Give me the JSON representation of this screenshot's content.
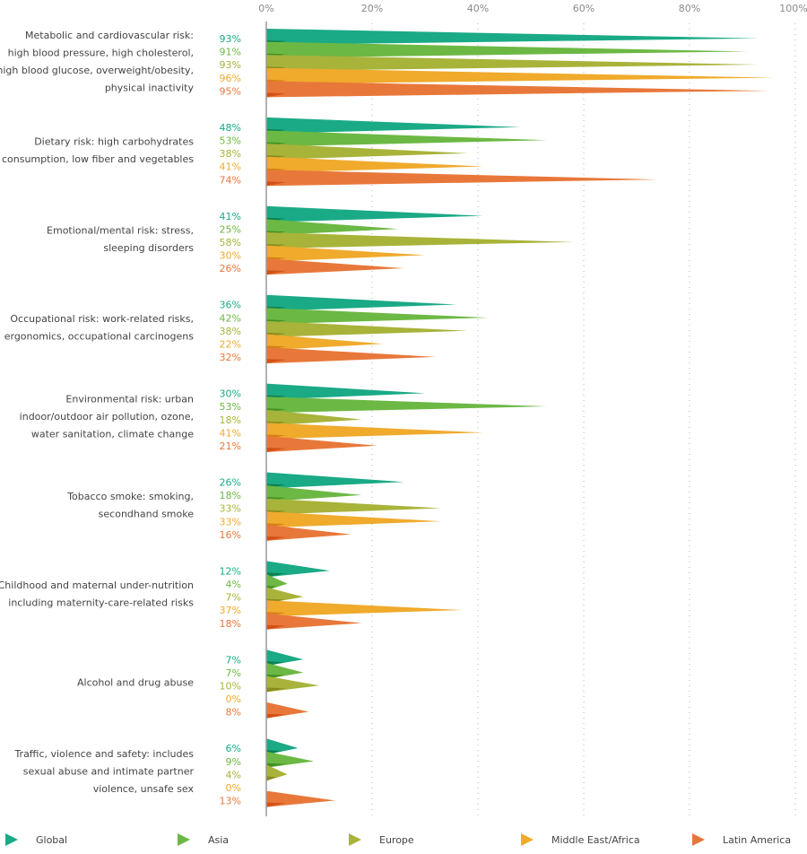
{
  "chart_data": {
    "type": "bar",
    "orientation": "horizontal",
    "title": "",
    "xlabel": "",
    "ylabel": "",
    "xlim": [
      0,
      100
    ],
    "x_ticks": [
      "0%",
      "20%",
      "40%",
      "60%",
      "80%",
      "100%"
    ],
    "grid": true,
    "legend_position": "bottom",
    "categories": [
      [
        "Metabolic and cardiovascular risk:",
        "high blood pressure, high cholesterol,",
        "high blood glucose, overweight/obesity,",
        "physical inactivity"
      ],
      [
        "Dietary risk: high carbohydrates",
        "consumption, low fiber and vegetables"
      ],
      [
        "Emotional/mental risk: stress,",
        "sleeping disorders"
      ],
      [
        "Occupational risk: work-related risks,",
        "ergonomics, occupational carcinogens"
      ],
      [
        "Environmental risk: urban",
        "indoor/outdoor air pollution, ozone,",
        "water sanitation, climate change"
      ],
      [
        "Tobacco smoke: smoking,",
        "secondhand smoke"
      ],
      [
        "Childhood and maternal under-nutrition",
        "including maternity-care-related risks"
      ],
      [
        "Alcohol and drug abuse"
      ],
      [
        "Traffic, violence and safety: includes",
        "sexual abuse and intimate partner",
        "violence, unsafe sex"
      ]
    ],
    "series": [
      {
        "name": "Global",
        "color": "#1aaa86",
        "dark": "#0b7a45",
        "values": [
          93,
          48,
          41,
          36,
          30,
          26,
          12,
          7,
          6
        ]
      },
      {
        "name": "Asia",
        "color": "#6cb844",
        "dark": "#3b8a1f",
        "values": [
          91,
          53,
          25,
          42,
          53,
          18,
          4,
          7,
          9
        ]
      },
      {
        "name": "Europe",
        "color": "#a8b33a",
        "dark": "#82861a",
        "values": [
          93,
          38,
          58,
          38,
          18,
          33,
          7,
          10,
          4
        ]
      },
      {
        "name": "Middle East/Africa",
        "color": "#f0aa2c",
        "dark": "#d07a10",
        "values": [
          96,
          41,
          30,
          22,
          41,
          33,
          37,
          0,
          0
        ]
      },
      {
        "name": "Latin America",
        "color": "#e8783a",
        "dark": "#cf4a12",
        "values": [
          95,
          74,
          26,
          32,
          21,
          16,
          18,
          8,
          13
        ]
      }
    ],
    "value_suffix": "%"
  }
}
